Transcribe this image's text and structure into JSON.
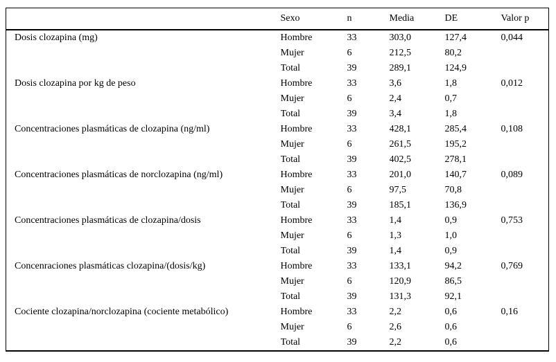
{
  "table": {
    "headers": {
      "variable": "",
      "sexo": "Sexo",
      "n": "n",
      "media": "Media",
      "de": "DE",
      "valor_p": "Valor p"
    },
    "groups": [
      {
        "label": "Dosis clozapina (mg)",
        "rows": [
          {
            "sexo": "Hombre",
            "n": "33",
            "media": "303,0",
            "de": "127,4",
            "p": "0,044"
          },
          {
            "sexo": "Mujer",
            "n": "6",
            "media": "212,5",
            "de": "80,2",
            "p": ""
          },
          {
            "sexo": "Total",
            "n": "39",
            "media": "289,1",
            "de": "124,9",
            "p": ""
          }
        ]
      },
      {
        "label": "Dosis clozapina por kg de peso",
        "rows": [
          {
            "sexo": "Hombre",
            "n": "33",
            "media": "3,6",
            "de": "1,8",
            "p": "0,012"
          },
          {
            "sexo": "Mujer",
            "n": "6",
            "media": "2,4",
            "de": "0,7",
            "p": ""
          },
          {
            "sexo": "Total",
            "n": "39",
            "media": "3,4",
            "de": "1,8",
            "p": ""
          }
        ]
      },
      {
        "label": "Concentraciones plasmáticas de clozapina (ng/ml)",
        "rows": [
          {
            "sexo": "Hombre",
            "n": "33",
            "media": "428,1",
            "de": "285,4",
            "p": "0,108"
          },
          {
            "sexo": "Mujer",
            "n": "6",
            "media": "261,5",
            "de": "195,2",
            "p": ""
          },
          {
            "sexo": "Total",
            "n": "39",
            "media": "402,5",
            "de": "278,1",
            "p": ""
          }
        ]
      },
      {
        "label": "Concentraciones plasmáticas de norclozapina (ng/ml)",
        "rows": [
          {
            "sexo": "Hombre",
            "n": "33",
            "media": "201,0",
            "de": "140,7",
            "p": "0,089"
          },
          {
            "sexo": "Mujer",
            "n": "6",
            "media": "97,5",
            "de": "70,8",
            "p": ""
          },
          {
            "sexo": "Total",
            "n": "39",
            "media": "185,1",
            "de": "136,9",
            "p": ""
          }
        ]
      },
      {
        "label": "Concentraciones plasmáticas de clozapina/dosis",
        "rows": [
          {
            "sexo": "Hombre",
            "n": "33",
            "media": "1,4",
            "de": "0,9",
            "p": "0,753"
          },
          {
            "sexo": "Mujer",
            "n": "6",
            "media": "1,3",
            "de": "1,0",
            "p": ""
          },
          {
            "sexo": "Total",
            "n": "39",
            "media": "1,4",
            "de": "0,9",
            "p": ""
          }
        ]
      },
      {
        "label": "Concenraciones plasmáticas clozapina/(dosis/kg)",
        "rows": [
          {
            "sexo": "Hombre",
            "n": "33",
            "media": "133,1",
            "de": "94,2",
            "p": "0,769"
          },
          {
            "sexo": "Mujer",
            "n": "6",
            "media": "120,9",
            "de": "86,5",
            "p": ""
          },
          {
            "sexo": "Total",
            "n": "39",
            "media": "131,3",
            "de": "92,1",
            "p": ""
          }
        ]
      },
      {
        "label": "Cociente clozapina/norclozapina (cociente metabólico)",
        "rows": [
          {
            "sexo": "Hombre",
            "n": "33",
            "media": "2,2",
            "de": "0,6",
            "p": "0,16"
          },
          {
            "sexo": "Mujer",
            "n": "6",
            "media": "2,6",
            "de": "0,6",
            "p": ""
          },
          {
            "sexo": "Total",
            "n": "39",
            "media": "2,2",
            "de": "0,6",
            "p": ""
          }
        ]
      }
    ]
  }
}
